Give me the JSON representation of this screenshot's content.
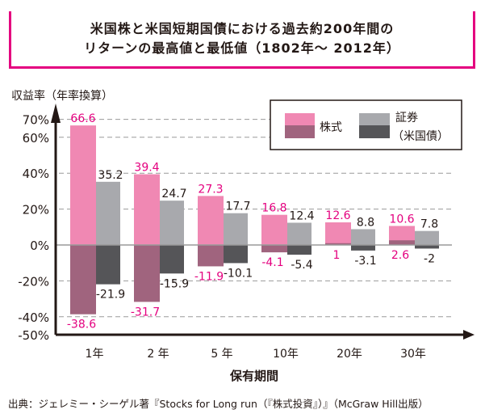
{
  "title": {
    "line1": "米国株と米国短期国債における過去約200年間の",
    "line2": "リターンの最高値と最低値（1802年～ 2012年）"
  },
  "source": "出典：ジェレミー・シーゲル著『Stocks for Long run（『株式投資』）』（McGraw Hill出版）",
  "chart_data": {
    "type": "bar",
    "title": "米国株と米国短期国債における過去約200年間のリターンの最高値と最低値（1802年～ 2012年）",
    "ylabel": "収益率（年率換算）",
    "xlabel": "保有期間",
    "ylim": [
      -50,
      70
    ],
    "yticks": [
      70,
      60,
      40,
      20,
      0,
      -20,
      -40,
      -50
    ],
    "ytick_labels": [
      "70%",
      "60%",
      "40%",
      "20%",
      "0%",
      "-20%",
      "-40%",
      "-50%"
    ],
    "grid": true,
    "legend_position": "top-right",
    "categories": [
      "1年",
      "2 年",
      "5 年",
      "10年",
      "20年",
      "30年"
    ],
    "series": [
      {
        "name": "株式",
        "max": [
          66.6,
          39.4,
          27.3,
          16.8,
          12.6,
          10.6
        ],
        "min": [
          -38.6,
          -31.7,
          -11.9,
          -4.1,
          1,
          2.6
        ],
        "max_color": "#f088b3",
        "min_color": "#a0647e",
        "label_color": "#e4007f"
      },
      {
        "name": "証券（米国債）",
        "legend_line1": "証券",
        "legend_line2": "（米国債）",
        "max": [
          35.2,
          24.7,
          17.7,
          12.4,
          8.8,
          7.8
        ],
        "min": [
          -21.9,
          -15.9,
          -10.1,
          -5.4,
          -3.1,
          -2
        ],
        "max_color": "#a8a9ad",
        "min_color": "#555558",
        "label_color": "#231815"
      }
    ]
  }
}
